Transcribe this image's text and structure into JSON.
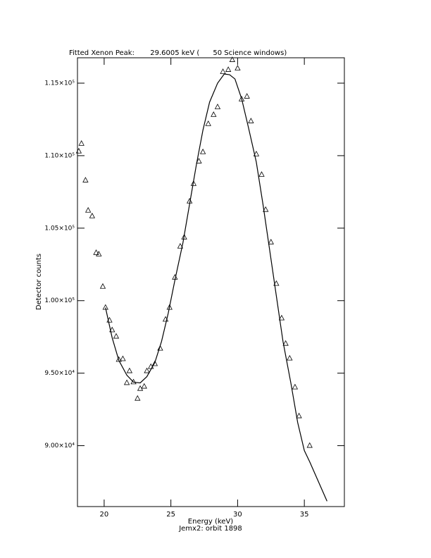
{
  "chart_data": {
    "type": "scatter",
    "title": "Fitted Xenon Peak:       29.6005 keV (      50 Science windows)",
    "x_label": "Energy (keV)",
    "caption": "Jemx2: orbit 1898",
    "y_label": "Detector counts",
    "xlim": [
      18,
      38
    ],
    "ylim": [
      85800,
      116750
    ],
    "xticks": [
      20,
      25,
      30,
      35
    ],
    "yticks": [
      {
        "value": 90000,
        "label": "9.00×10⁴"
      },
      {
        "value": 95000,
        "label": "9.50×10⁴"
      },
      {
        "value": 100000,
        "label": "1.00×10⁵"
      },
      {
        "value": 105000,
        "label": "1.05×10⁵"
      },
      {
        "value": 110000,
        "label": "1.10×10⁵"
      },
      {
        "value": 115000,
        "label": "1.15×10⁵"
      }
    ],
    "series": [
      {
        "style": "triangle",
        "color": "#000000",
        "x": [
          18.1,
          18.3,
          18.6,
          18.8,
          19.1,
          19.4,
          19.6,
          19.9,
          20.1,
          20.4,
          20.6,
          20.9,
          21.1,
          21.4,
          21.7,
          21.9,
          22.2,
          22.5,
          22.7,
          23.0,
          23.2,
          23.5,
          23.8,
          24.2,
          24.6,
          24.9,
          25.3,
          25.7,
          26.0,
          26.4,
          26.7,
          27.1,
          27.4,
          27.8,
          28.2,
          28.5,
          28.9,
          29.3,
          29.6,
          30.0,
          30.3,
          30.7,
          31.0,
          31.4,
          31.8,
          32.1,
          32.5,
          32.9,
          33.3,
          33.6,
          33.9,
          34.3,
          34.6,
          35.4
        ],
        "values": [
          110300,
          110830,
          108300,
          106220,
          105830,
          103300,
          103200,
          100970,
          99520,
          98640,
          97970,
          97530,
          95930,
          95980,
          94330,
          95150,
          94380,
          93250,
          93930,
          94080,
          95150,
          95440,
          95640,
          96700,
          98700,
          99520,
          101600,
          103740,
          104370,
          106850,
          108060,
          109610,
          110250,
          112190,
          112820,
          113350,
          115780,
          115920,
          116600,
          116020,
          113890,
          114080,
          112380,
          110100,
          108690,
          106270,
          104030,
          101170,
          98790,
          97040,
          96020,
          94030,
          92040,
          90000
        ]
      },
      {
        "style": "line",
        "color": "#000000",
        "x": [
          20.1,
          20.6,
          21.1,
          21.7,
          22.2,
          22.7,
          23.2,
          23.8,
          24.3,
          24.8,
          25.3,
          25.9,
          26.4,
          26.9,
          27.4,
          27.9,
          28.5,
          29.0,
          29.4,
          29.8,
          30.3,
          30.8,
          31.4,
          31.9,
          32.4,
          32.9,
          33.4,
          34.0,
          34.5,
          35.0,
          35.4,
          36.7
        ],
        "values": [
          99520,
          97440,
          95880,
          94860,
          94380,
          94330,
          94760,
          95740,
          97190,
          99130,
          101410,
          103980,
          106650,
          109320,
          111750,
          113690,
          115000,
          115630,
          115580,
          115290,
          113930,
          111990,
          109560,
          106650,
          103500,
          100340,
          97190,
          94270,
          91600,
          89660,
          88890,
          86170
        ]
      }
    ]
  }
}
